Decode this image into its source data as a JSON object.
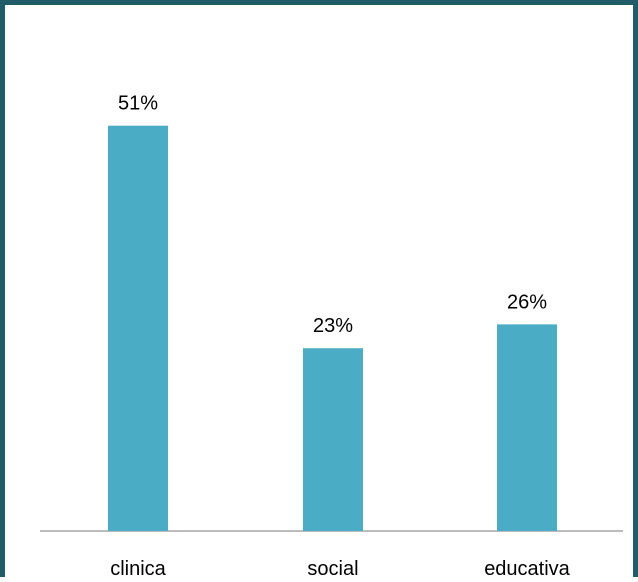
{
  "chart_data": {
    "type": "bar",
    "categories": [
      "clinica",
      "social",
      "educativa"
    ],
    "values": [
      51,
      23,
      26
    ],
    "data_labels": [
      "51%",
      "23%",
      "26%"
    ],
    "title": "",
    "xlabel": "",
    "ylabel": "",
    "ylim": [
      0,
      57
    ],
    "grid": false,
    "legend": "none",
    "colors": {
      "bar": "#4bacc6",
      "axis": "#a6a6a6",
      "border": "#205d68"
    }
  }
}
